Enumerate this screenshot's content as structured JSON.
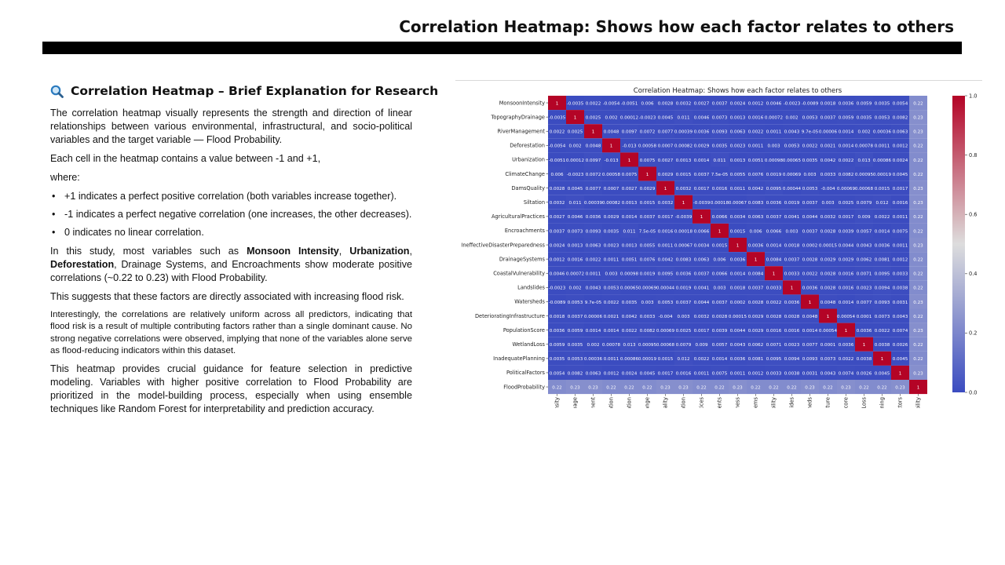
{
  "slide": {
    "title": "Correlation Heatmap: Shows how each factor relates to others"
  },
  "text": {
    "heading": "Correlation Heatmap – Brief Explanation for Research",
    "heading_icon": "magnifying-glass-icon",
    "p1": "The correlation heatmap visually represents the strength and direction of linear relationships between various environmental, infrastructural, and socio-political variables and the target variable — Flood Probability.",
    "p2": "Each cell in the heatmap contains a value between -1 and +1,",
    "p3": "where:",
    "bullets": [
      "+1 indicates a perfect positive correlation (both variables increase together).",
      "-1 indicates a perfect negative correlation (one increases, the other decreases).",
      "0 indicates no linear correlation."
    ],
    "p4_prefix": "In this study, most variables such as ",
    "p4_b1": "Monsoon Intensity",
    "p4_sep1": ", ",
    "p4_b2": "Urbanization",
    "p4_sep2": ", ",
    "p4_b3": "Deforestation",
    "p4_suffix": ", Drainage Systems, and Encroachments show moderate positive correlations (~0.22 to 0.23) with Flood Probability.",
    "p5": "This suggests that these factors are directly associated with increasing flood risk.",
    "p6": "Interestingly, the correlations are relatively uniform across all predictors, indicating that flood risk is a result of multiple contributing factors rather than a single dominant cause. No strong negative correlations were observed, implying that none of the variables alone serve as flood-reducing indicators within this dataset.",
    "p7": "This heatmap provides crucial guidance for feature selection in predictive modeling. Variables with higher positive correlation to Flood Probability are prioritized in the model-building process, especially when using ensemble techniques like Random Forest for interpretability and prediction accuracy."
  },
  "chart_data": {
    "type": "heatmap",
    "title": "Correlation Heatmap: Shows how each factor relates to others",
    "variables": [
      "MonsoonIntensity",
      "TopographyDrainage",
      "RiverManagement",
      "Deforestation",
      "Urbanization",
      "ClimateChange",
      "DamsQuality",
      "Siltation",
      "AgriculturalPractices",
      "Encroachments",
      "IneffectiveDisasterPreparedness",
      "DrainageSystems",
      "CoastalVulnerability",
      "Landslides",
      "Watersheds",
      "DeterioratingInfrastructure",
      "PopulationScore",
      "WetlandLoss",
      "InadequatePlanning",
      "PoliticalFactors",
      "FloodProbability"
    ],
    "colorbar": {
      "min": 0.0,
      "max": 1.0,
      "ticks": [
        "0.0",
        "0.2",
        "0.4",
        "0.6",
        "0.8",
        "1.0"
      ],
      "low_color": "#3b4cc0",
      "high_color": "#b40426"
    },
    "flood_probability_correlations": [
      0.22,
      0.23,
      0.23,
      0.22,
      0.22,
      0.22,
      0.23,
      0.23,
      0.22,
      0.22,
      0.23,
      0.22,
      0.22,
      0.22,
      0.23,
      0.22,
      0.23,
      0.22,
      0.22,
      0.23,
      1
    ],
    "rows": [
      [
        "1",
        "-0.0035",
        "0.0022",
        "-0.0054",
        "-0.0051",
        "0.006",
        "0.0028",
        "0.0032",
        "0.0027",
        "0.0037",
        "0.0024",
        "0.0012",
        "0.0046",
        "-0.0023",
        "-0.0089",
        "0.0018",
        "0.0036",
        "0.0059",
        "0.0035",
        "0.0054",
        "0.22"
      ],
      [
        "-0.0035",
        "1",
        "0.0025",
        "0.002",
        "0.00012",
        "-0.0023",
        "0.0045",
        "0.011",
        "0.0046",
        "0.0073",
        "0.0013",
        "0.0016",
        "0.00072",
        "0.002",
        "0.0053",
        "0.0037",
        "0.0059",
        "0.0035",
        "0.0053",
        "0.0082",
        "0.23"
      ],
      [
        "0.0022",
        "0.0025",
        "1",
        "0.0048",
        "0.0097",
        "0.0072",
        "0.0077",
        "0.00039",
        "0.0036",
        "0.0093",
        "0.0063",
        "0.0022",
        "0.0011",
        "0.0043",
        "9.7e-05",
        "0.00006",
        "0.0014",
        "0.002",
        "0.00036",
        "0.0063",
        "0.23"
      ],
      [
        "-0.0054",
        "0.002",
        "0.0048",
        "1",
        "-0.013",
        "0.00058",
        "0.0007",
        "0.00082",
        "0.0029",
        "0.0035",
        "0.0023",
        "0.0011",
        "0.003",
        "0.0053",
        "0.0022",
        "0.0021",
        "0.0014",
        "0.00078",
        "0.0011",
        "0.0012",
        "0.22"
      ],
      [
        "-0.0051",
        "0.00012",
        "0.0097",
        "-0.013",
        "1",
        "0.0075",
        "0.0027",
        "0.0013",
        "0.0014",
        "0.011",
        "0.0013",
        "0.0051",
        "0.00098",
        "0.00065",
        "0.0035",
        "0.0042",
        "0.0022",
        "0.013",
        "0.00086",
        "0.0024",
        "0.22"
      ],
      [
        "0.006",
        "-0.0023",
        "0.0072",
        "0.00058",
        "0.0075",
        "1",
        "0.0029",
        "0.0015",
        "0.0037",
        "7.5e-05",
        "0.0055",
        "0.0076",
        "0.0019",
        "0.00069",
        "0.003",
        "0.0033",
        "0.0082",
        "0.00095",
        "0.00019",
        "0.0045",
        "0.22"
      ],
      [
        "0.0028",
        "0.0045",
        "0.0077",
        "0.0007",
        "0.0027",
        "0.0029",
        "1",
        "0.0032",
        "0.0017",
        "0.0016",
        "0.0011",
        "0.0042",
        "0.0095",
        "0.00044",
        "0.0053",
        "-0.004",
        "0.00069",
        "0.00068",
        "0.0015",
        "0.0017",
        "0.23"
      ],
      [
        "0.0032",
        "0.011",
        "0.00039",
        "0.00082",
        "0.0013",
        "0.0015",
        "0.0032",
        "1",
        "-0.0039",
        "0.00018",
        "0.00067",
        "0.0083",
        "0.0036",
        "0.0019",
        "0.0037",
        "0.003",
        "0.0025",
        "0.0079",
        "0.012",
        "0.0016",
        "0.23"
      ],
      [
        "0.0027",
        "0.0046",
        "0.0036",
        "0.0029",
        "0.0014",
        "0.0037",
        "0.0017",
        "-0.0039",
        "1",
        "0.0066",
        "0.0034",
        "0.0063",
        "0.0037",
        "0.0041",
        "0.0044",
        "0.0032",
        "0.0017",
        "0.009",
        "0.0022",
        "0.0011",
        "0.22"
      ],
      [
        "0.0037",
        "0.0073",
        "0.0093",
        "0.0035",
        "0.011",
        "7.5e-05",
        "0.0016",
        "0.00018",
        "0.0066",
        "1",
        "0.0015",
        "0.006",
        "0.0066",
        "0.003",
        "0.0037",
        "0.0028",
        "0.0039",
        "0.0057",
        "0.0014",
        "0.0075",
        "0.22"
      ],
      [
        "0.0024",
        "0.0013",
        "0.0063",
        "0.0023",
        "0.0013",
        "0.0055",
        "0.0011",
        "0.00067",
        "0.0034",
        "0.0015",
        "1",
        "0.0036",
        "0.0014",
        "0.0018",
        "0.0002",
        "0.00015",
        "0.0044",
        "0.0043",
        "0.0036",
        "0.0011",
        "0.23"
      ],
      [
        "0.0012",
        "0.0016",
        "0.0022",
        "0.0011",
        "0.0051",
        "0.0076",
        "0.0042",
        "0.0083",
        "0.0063",
        "0.006",
        "0.0036",
        "1",
        "0.0084",
        "0.0037",
        "0.0028",
        "0.0029",
        "0.0029",
        "0.0062",
        "0.0081",
        "0.0012",
        "0.22"
      ],
      [
        "0.0046",
        "0.00072",
        "0.0011",
        "0.003",
        "0.00098",
        "0.0019",
        "0.0095",
        "0.0036",
        "0.0037",
        "0.0066",
        "0.0014",
        "0.0084",
        "1",
        "0.0033",
        "0.0022",
        "0.0028",
        "0.0016",
        "0.0071",
        "0.0095",
        "0.0033",
        "0.22"
      ],
      [
        "-0.0023",
        "0.002",
        "0.0043",
        "0.0053",
        "0.00065",
        "0.00069",
        "0.00044",
        "0.0019",
        "0.0041",
        "0.003",
        "0.0018",
        "0.0037",
        "0.0033",
        "1",
        "0.0036",
        "0.0028",
        "0.0016",
        "0.0023",
        "0.0094",
        "0.0038",
        "0.22"
      ],
      [
        "-0.0089",
        "0.0053",
        "9.7e-05",
        "0.0022",
        "0.0035",
        "0.003",
        "0.0053",
        "0.0037",
        "0.0044",
        "0.0037",
        "0.0002",
        "0.0028",
        "0.0022",
        "0.0036",
        "1",
        "0.0048",
        "0.0014",
        "0.0077",
        "0.0093",
        "0.0031",
        "0.23"
      ],
      [
        "0.0018",
        "0.0037",
        "0.00006",
        "0.0021",
        "0.0042",
        "0.0033",
        "-0.004",
        "0.003",
        "0.0032",
        "0.0028",
        "0.00015",
        "0.0029",
        "0.0028",
        "0.0028",
        "0.0048",
        "1",
        "0.00054",
        "0.0001",
        "0.0073",
        "0.0043",
        "0.22"
      ],
      [
        "0.0036",
        "0.0059",
        "0.0014",
        "0.0014",
        "0.0022",
        "0.0082",
        "0.00069",
        "0.0025",
        "0.0017",
        "0.0039",
        "0.0044",
        "0.0029",
        "0.0016",
        "0.0016",
        "0.0014",
        "0.00054",
        "1",
        "0.0036",
        "0.0022",
        "0.0074",
        "0.23"
      ],
      [
        "0.0059",
        "0.0035",
        "0.002",
        "0.00078",
        "0.013",
        "0.00095",
        "0.00068",
        "0.0079",
        "0.009",
        "0.0057",
        "0.0043",
        "0.0062",
        "0.0071",
        "0.0023",
        "0.0077",
        "0.0001",
        "0.0036",
        "1",
        "0.0038",
        "0.0026",
        "0.22"
      ],
      [
        "0.0035",
        "0.0053",
        "0.00036",
        "0.0011",
        "0.00086",
        "0.00019",
        "0.0015",
        "0.012",
        "0.0022",
        "0.0014",
        "0.0036",
        "0.0081",
        "0.0095",
        "0.0094",
        "0.0093",
        "0.0073",
        "0.0022",
        "0.0038",
        "1",
        "0.0045",
        "0.22"
      ],
      [
        "0.0054",
        "0.0082",
        "0.0063",
        "0.0012",
        "0.0024",
        "0.0045",
        "0.0017",
        "0.0016",
        "0.0011",
        "0.0075",
        "0.0011",
        "0.0012",
        "0.0033",
        "0.0038",
        "0.0031",
        "0.0043",
        "0.0074",
        "0.0026",
        "0.0045",
        "1",
        "0.23"
      ],
      [
        "0.22",
        "0.23",
        "0.23",
        "0.22",
        "0.22",
        "0.22",
        "0.23",
        "0.23",
        "0.22",
        "0.22",
        "0.23",
        "0.22",
        "0.22",
        "0.22",
        "0.23",
        "0.22",
        "0.23",
        "0.22",
        "0.22",
        "0.23",
        "1"
      ]
    ]
  }
}
